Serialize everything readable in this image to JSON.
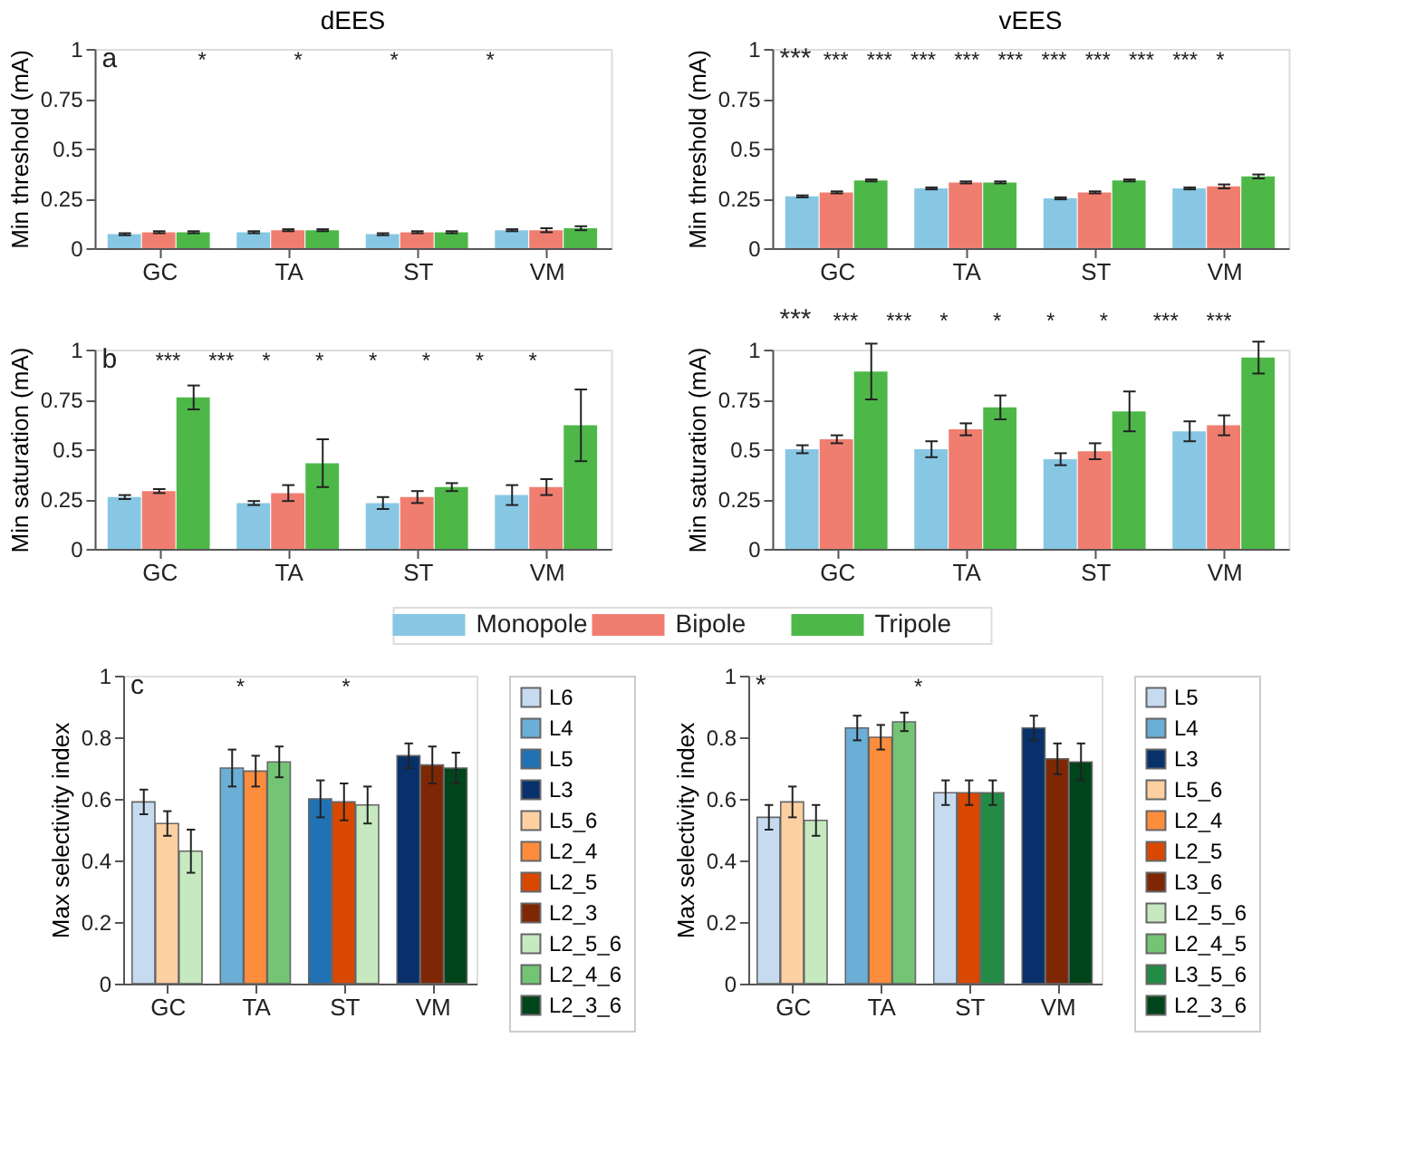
{
  "chart_data": [
    {
      "type": "bar",
      "title": "dEES",
      "ylabel": "Min threshold (mA)",
      "categories": [
        "GC",
        "TA",
        "ST",
        "VM"
      ],
      "ylim": [
        0,
        1
      ],
      "yticks": [
        0,
        0.25,
        0.5,
        0.75,
        1
      ],
      "legend": "bottom",
      "series": [
        {
          "name": "Monopole",
          "color": "#87c7e4",
          "values": [
            0.07,
            0.08,
            0.07,
            0.09
          ],
          "errors": [
            0.005,
            0.005,
            0.005,
            0.005
          ]
        },
        {
          "name": "Bipole",
          "color": "#f07e70",
          "values": [
            0.08,
            0.09,
            0.08,
            0.09
          ],
          "errors": [
            0.005,
            0.005,
            0.005,
            0.01
          ]
        },
        {
          "name": "Tripole",
          "color": "#4db848",
          "values": [
            0.08,
            0.09,
            0.08,
            0.1
          ],
          "errors": [
            0.005,
            0.005,
            0.005,
            0.01
          ]
        }
      ],
      "annotations": [
        "a",
        "*",
        "*",
        "*",
        "*"
      ]
    },
    {
      "type": "bar",
      "title": "vEES",
      "ylabel": "Min threshold (mA)",
      "categories": [
        "GC",
        "TA",
        "ST",
        "VM"
      ],
      "ylim": [
        0,
        1
      ],
      "yticks": [
        0,
        0.25,
        0.5,
        0.75,
        1
      ],
      "series": [
        {
          "color": "#87c7e4",
          "values": [
            0.26,
            0.3,
            0.25,
            0.3
          ],
          "errors": [
            0.005,
            0.005,
            0.005,
            0.005
          ]
        },
        {
          "color": "#f07e70",
          "values": [
            0.28,
            0.33,
            0.28,
            0.31
          ],
          "errors": [
            0.005,
            0.005,
            0.005,
            0.01
          ]
        },
        {
          "color": "#4db848",
          "values": [
            0.34,
            0.33,
            0.34,
            0.36
          ],
          "errors": [
            0.005,
            0.005,
            0.005,
            0.01
          ]
        }
      ],
      "annotations": [
        "***",
        "***",
        "***",
        "***",
        "***",
        "***",
        "***",
        "***",
        "***",
        "***",
        "*"
      ]
    },
    {
      "type": "bar",
      "ylabel": "Min saturation (mA)",
      "categories": [
        "GC",
        "TA",
        "ST",
        "VM"
      ],
      "ylim": [
        0,
        1
      ],
      "yticks": [
        0,
        0.25,
        0.5,
        0.75,
        1
      ],
      "series": [
        {
          "color": "#87c7e4",
          "values": [
            0.26,
            0.23,
            0.23,
            0.27
          ],
          "errors": [
            0.01,
            0.01,
            0.03,
            0.05
          ]
        },
        {
          "color": "#f07e70",
          "values": [
            0.29,
            0.28,
            0.26,
            0.31
          ],
          "errors": [
            0.01,
            0.04,
            0.03,
            0.04
          ]
        },
        {
          "color": "#4db848",
          "values": [
            0.76,
            0.43,
            0.31,
            0.62
          ],
          "errors": [
            0.06,
            0.12,
            0.02,
            0.18
          ]
        }
      ],
      "annotations": [
        "b",
        "***",
        "***",
        "*",
        "*",
        "*",
        "*",
        "*",
        "*"
      ]
    },
    {
      "type": "bar",
      "ylabel": "Min saturation (mA)",
      "categories": [
        "GC",
        "TA",
        "ST",
        "VM"
      ],
      "ylim": [
        0,
        1
      ],
      "yticks": [
        0,
        0.25,
        0.5,
        0.75,
        1
      ],
      "series": [
        {
          "color": "#87c7e4",
          "values": [
            0.5,
            0.5,
            0.45,
            0.59
          ],
          "errors": [
            0.02,
            0.04,
            0.03,
            0.05
          ]
        },
        {
          "color": "#f07e70",
          "values": [
            0.55,
            0.6,
            0.49,
            0.62
          ],
          "errors": [
            0.02,
            0.03,
            0.04,
            0.05
          ]
        },
        {
          "color": "#4db848",
          "values": [
            0.89,
            0.71,
            0.69,
            0.96
          ],
          "errors": [
            0.14,
            0.06,
            0.1,
            0.08
          ]
        }
      ],
      "annotations": [
        "***",
        "***",
        "***",
        "*",
        "*",
        "*",
        "*",
        "***",
        "***"
      ]
    },
    {
      "type": "bar",
      "ylabel": "Max selectivity index",
      "categories": [
        "GC",
        "TA",
        "ST",
        "VM"
      ],
      "ylim": [
        0,
        1
      ],
      "yticks": [
        0,
        0.2,
        0.4,
        0.6,
        0.8,
        1
      ],
      "legend": "right",
      "series": [
        {
          "name": "L6",
          "color": "#c6dbef",
          "values": [
            0.59,
            null,
            null,
            null
          ],
          "errors": [
            0.04,
            null,
            null,
            null
          ]
        },
        {
          "name": "L4",
          "color": "#6baed6",
          "values": [
            null,
            0.7,
            null,
            null
          ],
          "errors": [
            null,
            0.06,
            null,
            null
          ]
        },
        {
          "name": "L5",
          "color": "#2171b5",
          "values": [
            null,
            null,
            0.6,
            null
          ],
          "errors": [
            null,
            null,
            0.06,
            null
          ]
        },
        {
          "name": "L3",
          "color": "#08306b",
          "values": [
            null,
            null,
            null,
            0.74
          ],
          "errors": [
            null,
            null,
            null,
            0.04
          ]
        },
        {
          "name": "L5_6",
          "color": "#fdd0a2",
          "values": [
            0.52,
            null,
            null,
            null
          ],
          "errors": [
            0.04,
            null,
            null,
            null
          ]
        },
        {
          "name": "L2_4",
          "color": "#fd8d3c",
          "values": [
            null,
            0.69,
            null,
            null
          ],
          "errors": [
            null,
            0.05,
            null,
            null
          ]
        },
        {
          "name": "L2_5",
          "color": "#d94801",
          "values": [
            null,
            null,
            0.59,
            null
          ],
          "errors": [
            null,
            null,
            0.06,
            null
          ]
        },
        {
          "name": "L2_3",
          "color": "#7f2704",
          "values": [
            null,
            null,
            null,
            0.71
          ],
          "errors": [
            null,
            null,
            null,
            0.06
          ]
        },
        {
          "name": "L2_5_6",
          "color": "#c7e9c0",
          "values": [
            0.43,
            null,
            0.58,
            null
          ],
          "errors": [
            0.07,
            null,
            0.06,
            null
          ]
        },
        {
          "name": "L2_4_6",
          "color": "#74c476",
          "values": [
            null,
            0.72,
            null,
            null
          ],
          "errors": [
            null,
            0.05,
            null,
            null
          ]
        },
        {
          "name": "L2_3_6",
          "color": "#00441b",
          "values": [
            null,
            null,
            null,
            0.7
          ],
          "errors": [
            null,
            null,
            null,
            0.05
          ]
        }
      ],
      "annotations": [
        "c",
        "*",
        "*"
      ]
    },
    {
      "type": "bar",
      "ylabel": "Max selectivity index",
      "categories": [
        "GC",
        "TA",
        "ST",
        "VM"
      ],
      "ylim": [
        0,
        1
      ],
      "yticks": [
        0,
        0.2,
        0.4,
        0.6,
        0.8,
        1
      ],
      "legend": "right",
      "series": [
        {
          "name": "L5",
          "color": "#c6dbef",
          "values": [
            0.54,
            null,
            0.62,
            null
          ],
          "errors": [
            0.04,
            null,
            0.04,
            null
          ]
        },
        {
          "name": "L4",
          "color": "#6baed6",
          "values": [
            null,
            0.83,
            null,
            null
          ],
          "errors": [
            null,
            0.04,
            null,
            null
          ]
        },
        {
          "name": "L3",
          "color": "#08306b",
          "values": [
            null,
            null,
            null,
            0.83
          ],
          "errors": [
            null,
            null,
            null,
            0.04
          ]
        },
        {
          "name": "L5_6",
          "color": "#fdd0a2",
          "values": [
            0.59,
            null,
            null,
            null
          ],
          "errors": [
            0.05,
            null,
            null,
            null
          ]
        },
        {
          "name": "L2_4",
          "color": "#fd8d3c",
          "values": [
            null,
            0.8,
            null,
            null
          ],
          "errors": [
            null,
            0.04,
            null,
            null
          ]
        },
        {
          "name": "L2_5",
          "color": "#d94801",
          "values": [
            null,
            null,
            0.62,
            null
          ],
          "errors": [
            null,
            null,
            0.04,
            null
          ]
        },
        {
          "name": "L3_6",
          "color": "#7f2704",
          "values": [
            null,
            null,
            null,
            0.73
          ],
          "errors": [
            null,
            null,
            null,
            0.05
          ]
        },
        {
          "name": "L2_5_6",
          "color": "#c7e9c0",
          "values": [
            0.53,
            null,
            null,
            null
          ],
          "errors": [
            0.05,
            null,
            null,
            null
          ]
        },
        {
          "name": "L2_4_5",
          "color": "#74c476",
          "values": [
            null,
            0.85,
            null,
            null
          ],
          "errors": [
            null,
            0.03,
            null,
            null
          ]
        },
        {
          "name": "L3_5_6",
          "color": "#238b45",
          "values": [
            null,
            null,
            0.62,
            null
          ],
          "errors": [
            null,
            null,
            0.04,
            null
          ]
        },
        {
          "name": "L2_3_6",
          "color": "#00441b",
          "values": [
            null,
            null,
            null,
            0.72
          ],
          "errors": [
            null,
            null,
            null,
            0.06
          ]
        }
      ],
      "annotations": [
        "*",
        "*"
      ]
    }
  ]
}
